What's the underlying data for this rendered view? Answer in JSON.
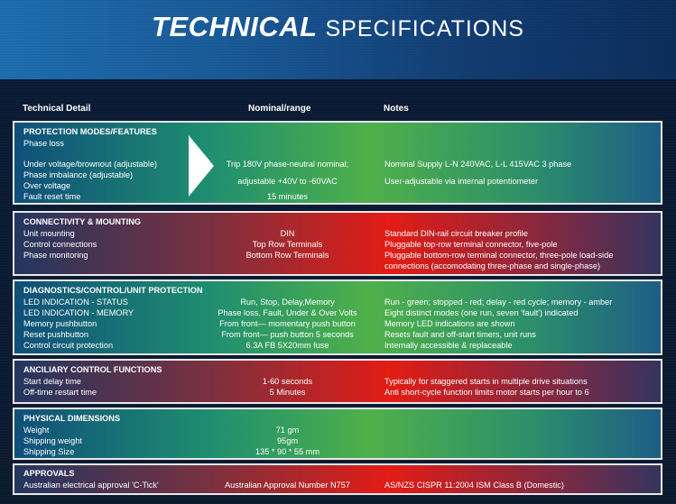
{
  "title": {
    "bold": "TECHNICAL",
    "light": "SPECIFICATIONS"
  },
  "columns": {
    "detail": "Technical Detail",
    "nominal": "Nominal/range",
    "notes": "Notes"
  },
  "sections": [
    {
      "title": "PROTECTION MODES/FEATURES",
      "rows": [
        {
          "detail": "Phase loss",
          "nominal": "",
          "notes": ""
        },
        {
          "detail": "Under voltage/brownout (adjustable)",
          "nominal": "Trip 180V phase-neutral nominal;",
          "notes": "Nominal Supply L-N 240VAC,  L-L 415VAC 3 phase"
        },
        {
          "detail": "Phase imbalance (adjustable)",
          "nominal": "",
          "notes": ""
        },
        {
          "detail": "Over voltage",
          "nominal": "adjustable +40V to -60VAC",
          "notes": "User-adjustable via internal potentiometer"
        },
        {
          "detail": "Fault reset time",
          "nominal": "15 minutes",
          "notes": ""
        }
      ]
    },
    {
      "title": "CONNECTIVITY & MOUNTING",
      "rows": [
        {
          "detail": "Unit mounting",
          "nominal": "DIN",
          "notes": "Standard DIN-rail circuit breaker profile"
        },
        {
          "detail": "Control connections",
          "nominal": "Top Row Terminals",
          "notes": "Pluggable top-row terminal connector, five-pole"
        },
        {
          "detail": "Phase monitoring",
          "nominal": "Bottom Row Terminals",
          "notes": "Pluggable bottom-row terminal connector, three-pole load-side"
        },
        {
          "detail": "",
          "nominal": "",
          "notes": "connections (accomodating three-phase and single-phase)"
        }
      ]
    },
    {
      "title": "DIAGNOSTICS/CONTROL/UNIT PROTECTION",
      "rows": [
        {
          "detail": "LED INDICATION - STATUS",
          "nominal": "Run, Stop, Delay,Memory",
          "notes": "Run - green; stopped - red; delay - red cycle; memory - amber"
        },
        {
          "detail": "LED INDICATION - MEMORY",
          "nominal": "Phase loss, Fault, Under & Over Volts",
          "notes": "Eight distinct modes (one run, seven 'fault') indicated"
        },
        {
          "detail": "Memory pushbutton",
          "nominal": "From front— momentary push button",
          "notes": "Memory LED indications are shown"
        },
        {
          "detail": "Reset pushbutton",
          "nominal": "From front— push button 5 seconds",
          "notes": "Resets fault and off-start timers, unit runs"
        },
        {
          "detail": "Control circuit protection",
          "nominal": "6.3A FB 5X20mm fuse",
          "notes": "Internally accessible & replaceable"
        }
      ]
    },
    {
      "title": "ANCILIARY CONTROL FUNCTIONS",
      "rows": [
        {
          "detail": "Start delay time",
          "nominal": "1-60 seconds",
          "notes": "Typically for staggered starts in multiple drive situations"
        },
        {
          "detail": "Off-time restart time",
          "nominal": "5 Minutes",
          "notes": "Anti short-cycle function limits motor starts per hour to 6"
        }
      ]
    },
    {
      "title": "PHYSICAL DIMENSIONS",
      "rows": [
        {
          "detail": "Weight",
          "nominal": "71 gm",
          "notes": ""
        },
        {
          "detail": "Shipping weight",
          "nominal": "95gm",
          "notes": ""
        },
        {
          "detail": "Shipping Size",
          "nominal": "135 * 90 * 55 mm",
          "notes": ""
        }
      ]
    },
    {
      "title": "APPROVALS",
      "rows": [
        {
          "detail": "Australian electrical approval 'C-Tick'",
          "nominal": "Australian Approval Number N757",
          "notes": "AS/NZS CISPR 11:2004 ISM Class B (Domestic)"
        }
      ]
    }
  ]
}
